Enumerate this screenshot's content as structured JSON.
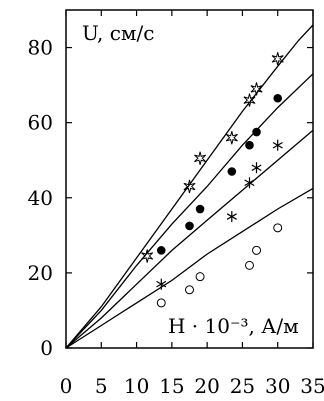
{
  "chart_data": {
    "type": "scatter",
    "xlabel": "H · 10⁻³, А/м",
    "ylabel": "U, см/с",
    "xlim": [
      0,
      35
    ],
    "ylim": [
      0,
      90
    ],
    "xticks": [
      0,
      5,
      10,
      15,
      20,
      25,
      30,
      35
    ],
    "yticks": [
      0,
      20,
      40,
      60,
      80
    ],
    "grid": false,
    "series": [
      {
        "marker": "star6",
        "points": [
          [
            11.5,
            24.5
          ],
          [
            17.5,
            43
          ],
          [
            19.0,
            50.5
          ],
          [
            23.5,
            56
          ],
          [
            26.0,
            66
          ],
          [
            27.0,
            69
          ],
          [
            30.0,
            77
          ]
        ]
      },
      {
        "marker": "filled-circle",
        "points": [
          [
            13.5,
            26
          ],
          [
            17.5,
            32.5
          ],
          [
            19.0,
            37
          ],
          [
            23.5,
            47
          ],
          [
            26.0,
            54
          ],
          [
            27.0,
            57.5
          ],
          [
            30.0,
            66.5
          ]
        ]
      },
      {
        "marker": "asterisk",
        "points": [
          [
            13.5,
            17
          ],
          [
            23.5,
            35
          ],
          [
            26.0,
            44
          ],
          [
            27.0,
            48
          ],
          [
            30.0,
            54
          ]
        ]
      },
      {
        "marker": "open-circle",
        "points": [
          [
            13.5,
            12
          ],
          [
            17.5,
            15.5
          ],
          [
            19.0,
            19
          ],
          [
            26.0,
            22
          ],
          [
            27.0,
            26
          ],
          [
            30.0,
            32
          ]
        ]
      }
    ],
    "curves": [
      {
        "points": [
          [
            0,
            0
          ],
          [
            5,
            11
          ],
          [
            10,
            24
          ],
          [
            15,
            37
          ],
          [
            20,
            50
          ],
          [
            25,
            63
          ],
          [
            30,
            75
          ],
          [
            33,
            82
          ],
          [
            35,
            86
          ]
        ]
      },
      {
        "points": [
          [
            0,
            0
          ],
          [
            5,
            10
          ],
          [
            10,
            22
          ],
          [
            15,
            33
          ],
          [
            20,
            43
          ],
          [
            25,
            54
          ],
          [
            30,
            64
          ],
          [
            35,
            73
          ]
        ]
      },
      {
        "points": [
          [
            0,
            0
          ],
          [
            5,
            8
          ],
          [
            10,
            17
          ],
          [
            15,
            26
          ],
          [
            20,
            34
          ],
          [
            25,
            42
          ],
          [
            30,
            50
          ],
          [
            35,
            58
          ]
        ]
      },
      {
        "points": [
          [
            0,
            0
          ],
          [
            5,
            6
          ],
          [
            10,
            12
          ],
          [
            15,
            18
          ],
          [
            20,
            25
          ],
          [
            25,
            31
          ],
          [
            30,
            37
          ],
          [
            35,
            42.5
          ]
        ]
      }
    ]
  }
}
